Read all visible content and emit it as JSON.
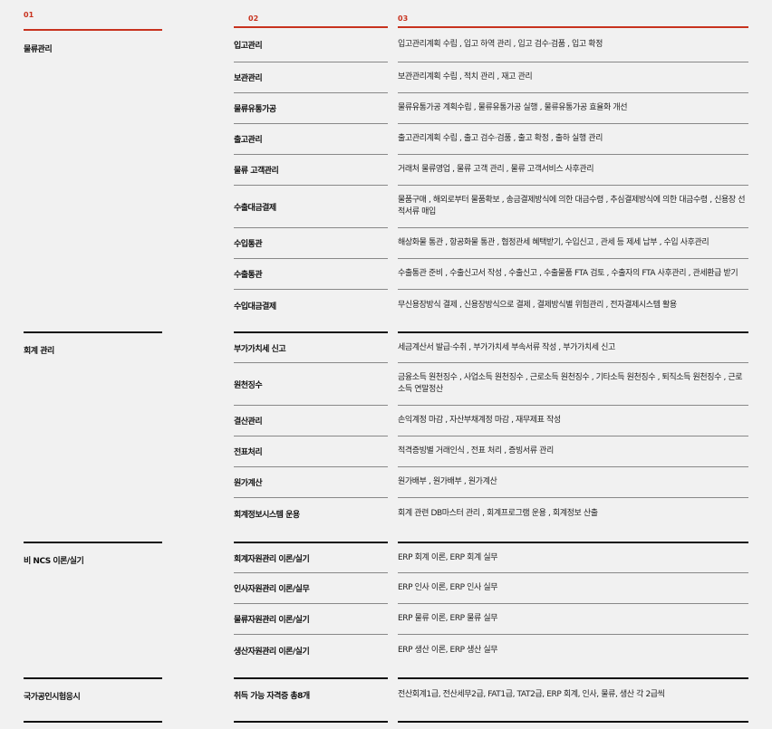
{
  "headers": [
    "01",
    "02",
    "03"
  ],
  "sections": [
    {
      "title": "물류관리",
      "rows": [
        {
          "name": "입고관리",
          "desc": "입고관리계획 수립 , 입고 하역 관리 , 입고 검수·검품 , 입고 확정"
        },
        {
          "name": "보관관리",
          "desc": "보관관리계획 수립 , 적치 관리 , 재고 관리"
        },
        {
          "name": "물류유통가공",
          "desc": "물류유통가공 계획수립 , 물류유통가공 실행 , 물류유통가공 효율화 개선"
        },
        {
          "name": "출고관리",
          "desc": "출고관리계획 수립 , 출고 검수·검품 , 출고 확정 , 출하 실행 관리"
        },
        {
          "name": "물류 고객관리",
          "desc": "거래처 물류영업 , 물류 고객 관리 , 물류 고객서비스 사후관리"
        },
        {
          "name": "수출대금결제",
          "desc": "물품구매 , 해외로부터 물품확보 , 송금결제방식에 의한 대금수령 , 추심결제방식에 의한 대금수령 , 신용장 선적서류 매입"
        },
        {
          "name": "수입통관",
          "desc": "해상화물 통관 , 항공화물 통관 , 협정관세 혜택받기, 수입신고 , 관세 등 제세 납부 , 수입 사후관리"
        },
        {
          "name": "수출통관",
          "desc": "수출통관 준비 , 수출신고서 작성 , 수출신고 , 수출물품 FTA 검토 , 수출자의 FTA 사후관리 , 관세환급 받기"
        },
        {
          "name": "수입대금결제",
          "desc": "무신용장방식 결제 , 신용장방식으로 결제 , 결제방식별 위험관리 , 전자결제시스템 활용"
        }
      ]
    },
    {
      "title": "회계 관리",
      "rows": [
        {
          "name": "부가가치세 신고",
          "desc": "세금계산서 발급·수취 , 부가가치세 부속서류 작성 , 부가가치세 신고"
        },
        {
          "name": "원천징수",
          "desc": "금융소득 원천징수 , 사업소득 원천징수 , 근로소득 원천징수 , 기타소득 원천징수 , 퇴직소득 원천징수 , 근로소득 연말정산"
        },
        {
          "name": "결산관리",
          "desc": "손익계정 마감 , 자산부채계정 마감 , 재무제표 작성"
        },
        {
          "name": "전표처리",
          "desc": "적격증빙별 거래인식 , 전표 처리 , 증빙서류 관리"
        },
        {
          "name": "원가계산",
          "desc": "원가배부 , 원가배부 , 원가계산"
        },
        {
          "name": "회계정보시스템 운용",
          "desc": "회계 관련 DB마스터 관리 , 회계프로그램 운용 , 회계정보 산출"
        }
      ]
    },
    {
      "title": "비 NCS 이론/실기",
      "rows": [
        {
          "name": "회계자원관리 이론/실기",
          "desc": "ERP 회계 이론, ERP 회계 실무"
        },
        {
          "name": "인사자원관리 이론/실무",
          "desc": "ERP 인사 이론, ERP 인사 실무"
        },
        {
          "name": "물류자원관리 이론/실기",
          "desc": "ERP 물류 이론, ERP 물류 실무"
        },
        {
          "name": "생산자원관리 이론/실기",
          "desc": "ERP 생산 이론, ERP 생산 실무"
        }
      ]
    },
    {
      "title": "국가공인시험응시",
      "rows": [
        {
          "name": "취득 가능 자격증 총8개",
          "desc": "전산회계1급, 전산세무2급, FAT1급, TAT2급, ERP 회계, 인사, 물류, 생산 각 2급씩"
        }
      ]
    }
  ],
  "colors": {
    "accent": "#c8321e",
    "rule": "#111111",
    "divider": "#888888"
  }
}
